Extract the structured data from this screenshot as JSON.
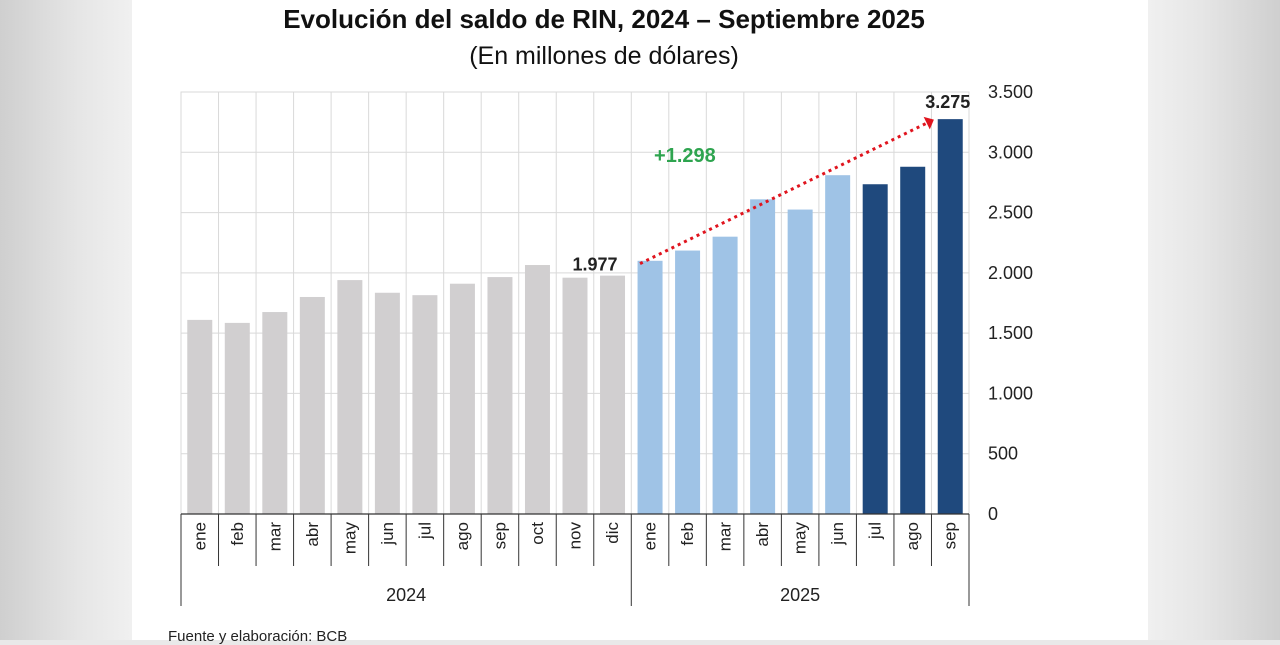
{
  "title": "Evolución del saldo de RIN, 2024 – Septiembre 2025",
  "subtitle": "(En millones de dólares)",
  "source": "Fuente y elaboración: BCB",
  "colors": {
    "gray": "#d1cfd0",
    "light_blue": "#9fc3e6",
    "dark_blue": "#1f497d",
    "grid": "#d9d9d9",
    "arrow": "#e0141e",
    "delta": "#2ea44f"
  },
  "chart_data": {
    "type": "bar",
    "title": "Evolución del saldo de RIN, 2024 – Septiembre 2025",
    "ylabel": "En millones de dólares",
    "ylim": [
      0,
      3500
    ],
    "yticks": [
      0,
      500,
      1000,
      1500,
      2000,
      2500,
      3000,
      3500
    ],
    "ytick_labels": [
      "0",
      "500",
      "1.000",
      "1.500",
      "2.000",
      "2.500",
      "3.000",
      "3.500"
    ],
    "grid": true,
    "categories": [
      "ene",
      "feb",
      "mar",
      "abr",
      "may",
      "jun",
      "jul",
      "ago",
      "sep",
      "oct",
      "nov",
      "dic",
      "ene",
      "feb",
      "mar",
      "abr",
      "may",
      "jun",
      "jul",
      "ago",
      "sep"
    ],
    "values": [
      1610,
      1585,
      1675,
      1800,
      1940,
      1835,
      1815,
      1910,
      1965,
      2065,
      1960,
      1977,
      2100,
      2185,
      2300,
      2610,
      2525,
      2810,
      2735,
      2880,
      3275
    ],
    "color_groups": [
      "gray",
      "gray",
      "gray",
      "gray",
      "gray",
      "gray",
      "gray",
      "gray",
      "gray",
      "gray",
      "gray",
      "gray",
      "light_blue",
      "light_blue",
      "light_blue",
      "light_blue",
      "light_blue",
      "light_blue",
      "dark_blue",
      "dark_blue",
      "dark_blue"
    ],
    "years": [
      {
        "label": "2024",
        "start": 0,
        "end": 11
      },
      {
        "label": "2025",
        "start": 12,
        "end": 20
      }
    ],
    "annotations": {
      "start_label": "1.977",
      "end_label": "3.275",
      "delta_label": "+1.298",
      "start_index": 11,
      "end_index": 20
    }
  }
}
